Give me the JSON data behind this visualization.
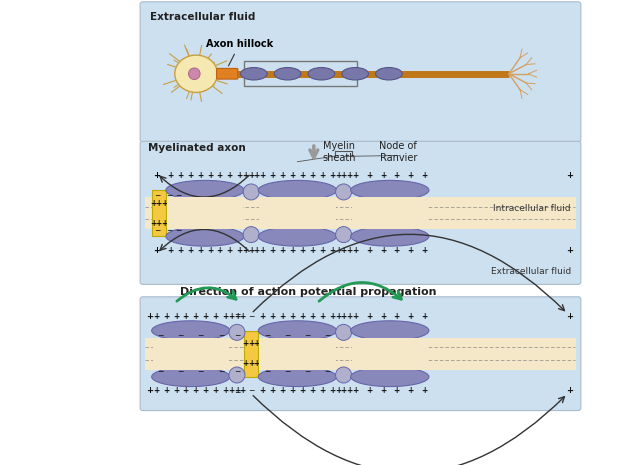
{
  "axon_bg": "#cce0f0",
  "myelin_color": "#8888bb",
  "myelin_dark": "#6666aa",
  "intracell_color": "#f5e8c8",
  "active_color": "#f5c842",
  "axon_hillock_color": "#e08020",
  "title_top": "Extracellular fluid",
  "label_myelinated": "Myelinated axon",
  "label_myelin_sheath": "Myelin\nsheath",
  "label_node_ranvier": "Node of\nRanvier",
  "label_axon_hillock": "Axon hillock",
  "label_intracell": "Intracellular fluid",
  "label_extracell": "Extracellular fluid",
  "label_propagation": "Direction of action potential propagation",
  "arrow_color": "#333333",
  "green_arrow_color": "#229955"
}
